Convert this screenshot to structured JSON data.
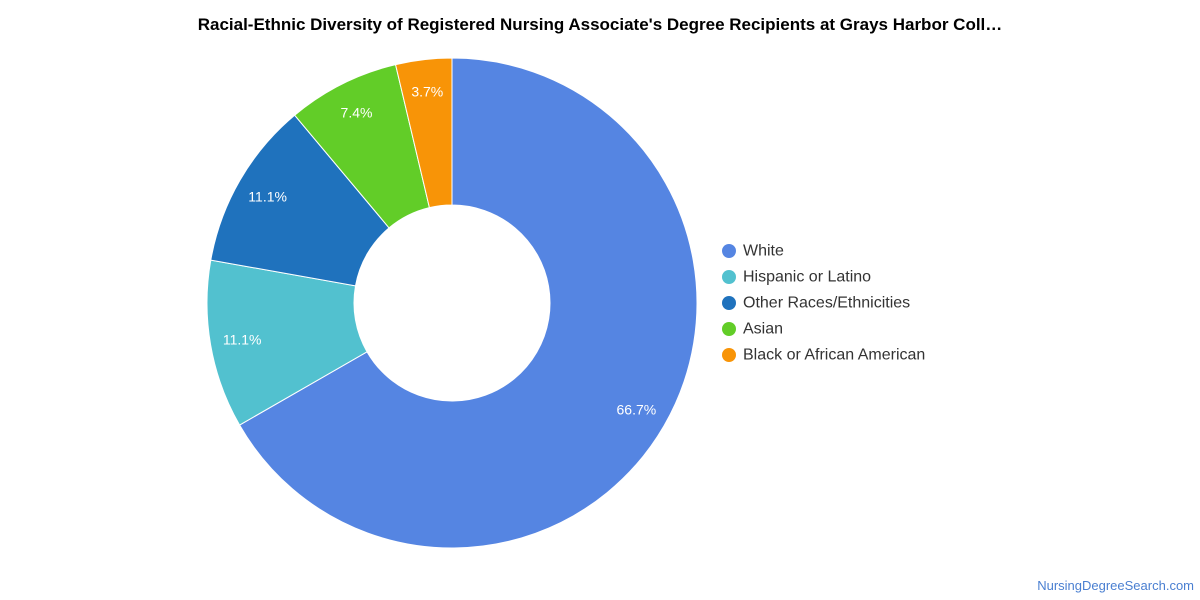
{
  "chart_data": {
    "type": "pie",
    "title": "Racial-Ethnic Diversity of Registered Nursing Associate's Degree Recipients at Grays Harbor Coll…",
    "donut": true,
    "legend_position": "right",
    "categories": [
      "White",
      "Hispanic or Latino",
      "Other Races/Ethnicities",
      "Asian",
      "Black or African American"
    ],
    "values": [
      66.7,
      11.1,
      11.1,
      7.4,
      3.7
    ],
    "labels": [
      "66.7%",
      "11.1%",
      "11.1%",
      "7.4%",
      "3.7%"
    ],
    "colors": [
      "#5585e2",
      "#52c1cf",
      "#1f72bd",
      "#62cd28",
      "#f89407"
    ]
  },
  "footer": {
    "source": "NursingDegreeSearch.com"
  }
}
